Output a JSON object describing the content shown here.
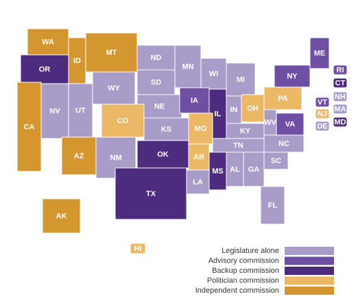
{
  "legend": {
    "items": [
      {
        "label": "Legislature alone",
        "color": "#a99cc8",
        "states": [
          "NV",
          "UT",
          "WY",
          "NM",
          "ND",
          "SD",
          "NE",
          "KS",
          "MN",
          "WI",
          "MI",
          "IN",
          "KY",
          "TN",
          "AL",
          "GA",
          "FL",
          "SC",
          "NC",
          "WV",
          "LA",
          "NH",
          "MA",
          "DE"
        ]
      },
      {
        "label": "Advisory commission",
        "color": "#6f4fa3",
        "states": [
          "IA",
          "ME",
          "NY",
          "VT",
          "RI",
          "VA"
        ]
      },
      {
        "label": "Backup commission",
        "color": "#4d2b7e",
        "states": [
          "OR",
          "IL",
          "OK",
          "TX",
          "MS",
          "CT",
          "MD"
        ]
      },
      {
        "label": "Politician commission",
        "color": "#ebb966",
        "states": [
          "CO",
          "MO",
          "AR",
          "OH",
          "PA",
          "NJ",
          "HI"
        ]
      },
      {
        "label": "Independent commission",
        "color": "#d4962e",
        "states": [
          "WA",
          "MT",
          "ID",
          "CA",
          "AZ",
          "AK"
        ]
      }
    ]
  }
}
